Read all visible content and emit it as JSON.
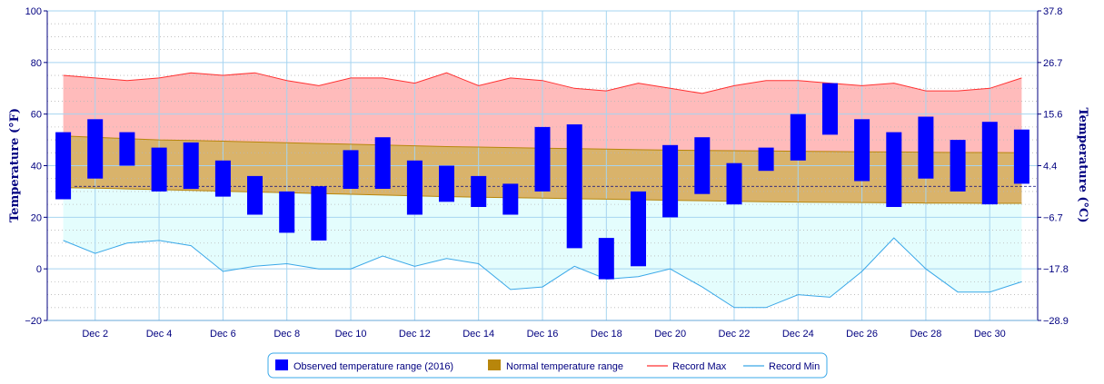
{
  "chart_data": {
    "type": "range-bar-with-area",
    "y_left_label": "Temperature (°F)",
    "y_right_label": "Temperature (°C)",
    "ylim": [
      -20,
      100
    ],
    "y_left_ticks": [
      "100",
      "80",
      "60",
      "40",
      "20",
      "0",
      "−20"
    ],
    "y_right_ticks": [
      "37.8",
      "26.7",
      "15.6",
      "4.4",
      "−6.7",
      "−17.8",
      "−28.9"
    ],
    "x_tick_labels": [
      "Dec 2",
      "Dec 4",
      "Dec 6",
      "Dec 8",
      "Dec 10",
      "Dec 12",
      "Dec 14",
      "Dec 16",
      "Dec 18",
      "Dec 20",
      "Dec 22",
      "Dec 24",
      "Dec 26",
      "Dec 28",
      "Dec 30"
    ],
    "days": [
      1,
      2,
      3,
      4,
      5,
      6,
      7,
      8,
      9,
      10,
      11,
      12,
      13,
      14,
      15,
      16,
      17,
      18,
      19,
      20,
      21,
      22,
      23,
      24,
      25,
      26,
      27,
      28,
      29,
      30,
      31
    ],
    "observed_low": [
      27,
      35,
      40,
      30,
      31,
      28,
      21,
      14,
      11,
      31,
      31,
      21,
      26,
      24,
      21,
      30,
      8,
      -4,
      1,
      20,
      29,
      25,
      38,
      42,
      52,
      34,
      24,
      35,
      30,
      25,
      33
    ],
    "observed_high": [
      53,
      58,
      53,
      47,
      49,
      42,
      36,
      30,
      32,
      46,
      51,
      42,
      40,
      36,
      33,
      55,
      56,
      12,
      30,
      48,
      51,
      41,
      47,
      60,
      72,
      58,
      53,
      59,
      50,
      57,
      54
    ],
    "normal_high": [
      51.5,
      51,
      50.5,
      50,
      49.8,
      49.5,
      49.2,
      48.9,
      48.6,
      48.3,
      48,
      47.7,
      47.4,
      47.2,
      47,
      46.8,
      46.6,
      46.4,
      46.2,
      46,
      45.9,
      45.8,
      45.7,
      45.6,
      45.5,
      45.4,
      45.3,
      45.2,
      45.1,
      45.1,
      45
    ],
    "normal_low": [
      31.5,
      31.3,
      31,
      30.7,
      30.4,
      30.1,
      29.8,
      29.5,
      29.2,
      28.9,
      28.6,
      28.3,
      28,
      27.8,
      27.6,
      27.4,
      27.2,
      27,
      26.8,
      26.6,
      26.4,
      26.2,
      26,
      25.9,
      25.8,
      25.7,
      25.6,
      25.5,
      25.5,
      25.4,
      25.4
    ],
    "record_max": [
      75,
      74,
      73,
      74,
      76,
      75,
      76,
      73,
      71,
      74,
      74,
      72,
      76,
      71,
      74,
      73,
      70,
      69,
      72,
      70,
      68,
      71,
      73,
      73,
      72,
      71,
      72,
      69,
      69,
      70,
      74
    ],
    "record_min": [
      11,
      6,
      10,
      11,
      9,
      -1,
      1,
      2,
      0,
      0,
      5,
      1,
      4,
      2,
      -8,
      -7,
      1,
      -4,
      -3,
      0,
      -7,
      -15,
      -15,
      -10,
      -11,
      -1,
      12,
      0,
      -9,
      -9,
      -5
    ],
    "freezing_line": 32,
    "legend": [
      {
        "label": "Observed temperature range (2016)",
        "color": "#0000ff"
      },
      {
        "label": "Normal temperature range",
        "color": "#b8860b"
      },
      {
        "label": "Record Max",
        "color": "#ff3030"
      },
      {
        "label": "Record Min",
        "color": "#3aa8e8"
      }
    ],
    "colors": {
      "observed": "#0000ff",
      "normal_fill": "#d9b36b",
      "normal_line": "#b8860b",
      "record_max_line": "#ff3030",
      "record_max_fill": "#ffbbbb",
      "record_min_line": "#3aa8e8",
      "record_min_fill": "#e4fdfd",
      "grid": "#a6d4f0",
      "axis": "#000080"
    }
  }
}
